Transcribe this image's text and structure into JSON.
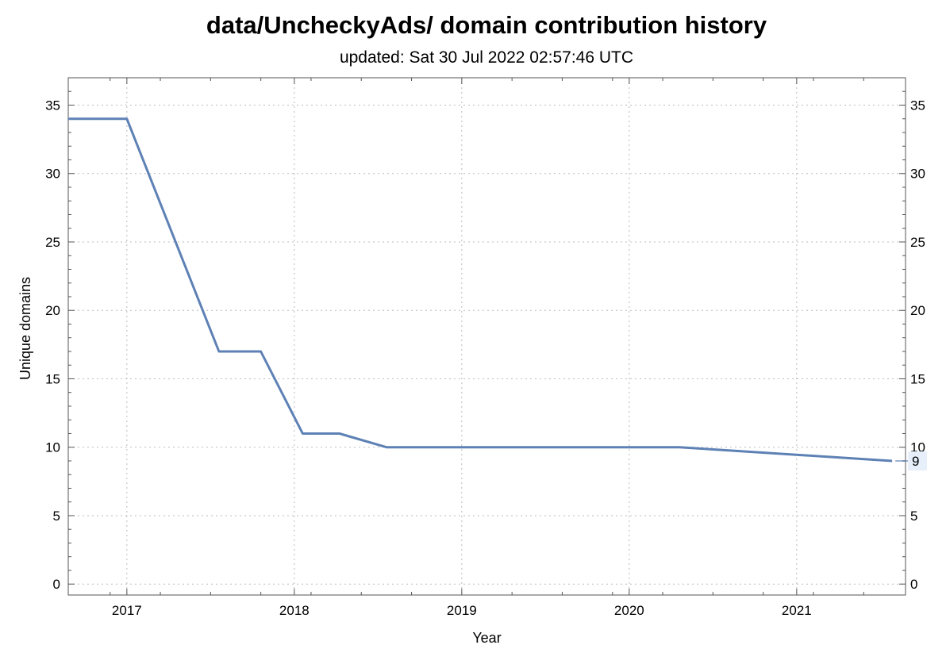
{
  "chart_data": {
    "type": "line",
    "title": "data/UncheckyAds/ domain contribution history",
    "subtitle": "updated: Sat 30 Jul 2022 02:57:46 UTC",
    "xlabel": "Year",
    "ylabel": "Unique domains",
    "xlim": [
      2016.65,
      2021.65
    ],
    "ylim": [
      -0.8,
      37
    ],
    "x_ticks": [
      2017,
      2018,
      2019,
      2020,
      2021
    ],
    "y_ticks": [
      0,
      5,
      10,
      15,
      20,
      25,
      30,
      35
    ],
    "grid": true,
    "line_color": "#5E81B5",
    "series": [
      {
        "x": [
          2016.65,
          2017.0,
          2017.55,
          2017.8,
          2018.05,
          2018.27,
          2018.55,
          2020.3,
          2021.57
        ],
        "y": [
          34,
          34,
          17,
          17,
          11,
          11,
          10,
          10,
          9
        ]
      }
    ],
    "end_label": "9"
  }
}
